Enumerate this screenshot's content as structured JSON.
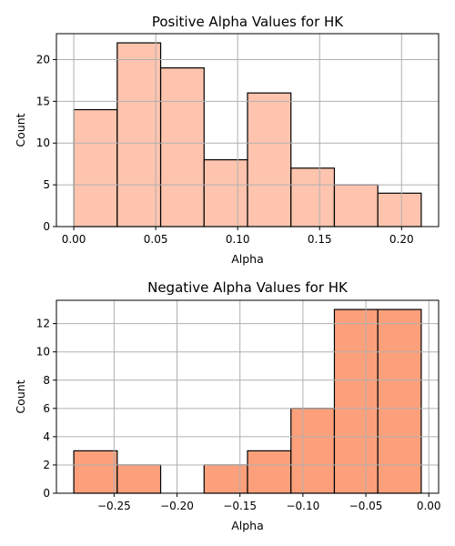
{
  "chart_data": [
    {
      "type": "bar",
      "title": "Positive Alpha Values for HK",
      "xlabel": "Alpha",
      "ylabel": "Count",
      "bin_edges": [
        0.0,
        0.0265,
        0.053,
        0.0795,
        0.106,
        0.1325,
        0.159,
        0.1855,
        0.212
      ],
      "values": [
        14,
        22,
        19,
        8,
        16,
        7,
        5,
        4
      ],
      "xlim": [
        -0.0106,
        0.2226
      ],
      "ylim": [
        0,
        23.1
      ],
      "xticks": [
        0.0,
        0.05,
        0.1,
        0.15,
        0.2
      ],
      "xtick_labels": [
        "0.00",
        "0.05",
        "0.10",
        "0.15",
        "0.20"
      ],
      "yticks": [
        0,
        5,
        10,
        15,
        20
      ],
      "ytick_labels": [
        "0",
        "5",
        "10",
        "15",
        "20"
      ],
      "bar_color": "#fec4ae",
      "edge_color": "#000000",
      "grid": true
    },
    {
      "type": "bar",
      "title": "Negative Alpha Values for HK",
      "xlabel": "Alpha",
      "ylabel": "Count",
      "bin_edges": [
        -0.282,
        -0.2475,
        -0.213,
        -0.1785,
        -0.144,
        -0.1095,
        -0.075,
        -0.0405,
        -0.006
      ],
      "values": [
        3,
        2,
        0,
        2,
        3,
        6,
        13,
        13
      ],
      "xlim": [
        -0.2958,
        0.0078
      ],
      "ylim": [
        0,
        13.65
      ],
      "xticks": [
        -0.25,
        -0.2,
        -0.15,
        -0.1,
        -0.05,
        0.0
      ],
      "xtick_labels": [
        "−0.25",
        "−0.20",
        "−0.15",
        "−0.10",
        "−0.05",
        "0.00"
      ],
      "yticks": [
        0,
        2,
        4,
        6,
        8,
        10,
        12
      ],
      "ytick_labels": [
        "0",
        "2",
        "4",
        "6",
        "8",
        "10",
        "12"
      ],
      "bar_color": "#fca07c",
      "edge_color": "#000000",
      "grid": true
    }
  ]
}
